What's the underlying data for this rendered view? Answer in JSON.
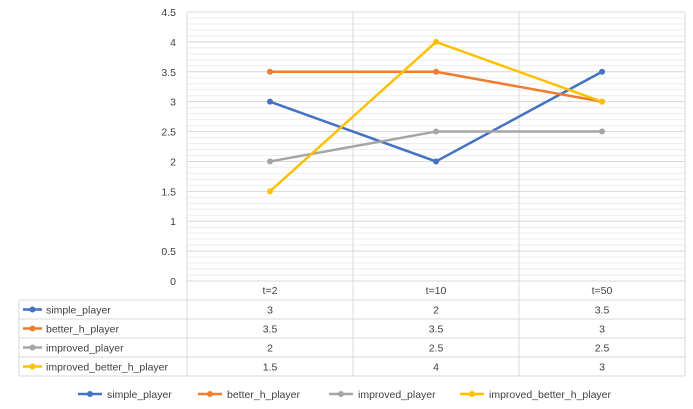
{
  "chart_data": {
    "type": "line",
    "categories": [
      "t=2",
      "t=10",
      "t=50"
    ],
    "series": [
      {
        "name": "simple_player",
        "values": [
          3,
          2,
          3.5
        ],
        "color": "#4472C4"
      },
      {
        "name": "better_h_player",
        "values": [
          3.5,
          3.5,
          3
        ],
        "color": "#ED7D31"
      },
      {
        "name": "improved_player",
        "values": [
          2,
          2.5,
          2.5
        ],
        "color": "#A5A5A5"
      },
      {
        "name": "improved_better_h_player",
        "values": [
          1.5,
          4,
          3
        ],
        "color": "#FFC000"
      }
    ],
    "y_ticks": [
      "0",
      "0.5",
      "1",
      "1.5",
      "2",
      "2.5",
      "3",
      "3.5",
      "4",
      "4.5"
    ],
    "table_values": [
      [
        "3",
        "2",
        "3.5"
      ],
      [
        "3.5",
        "3.5",
        "3"
      ],
      [
        "2",
        "2.5",
        "2.5"
      ],
      [
        "1.5",
        "4",
        "3"
      ]
    ],
    "ylim": [
      0,
      4.5
    ],
    "grid": true,
    "minor_grid": true,
    "legend": "bottom",
    "data_table": true
  }
}
